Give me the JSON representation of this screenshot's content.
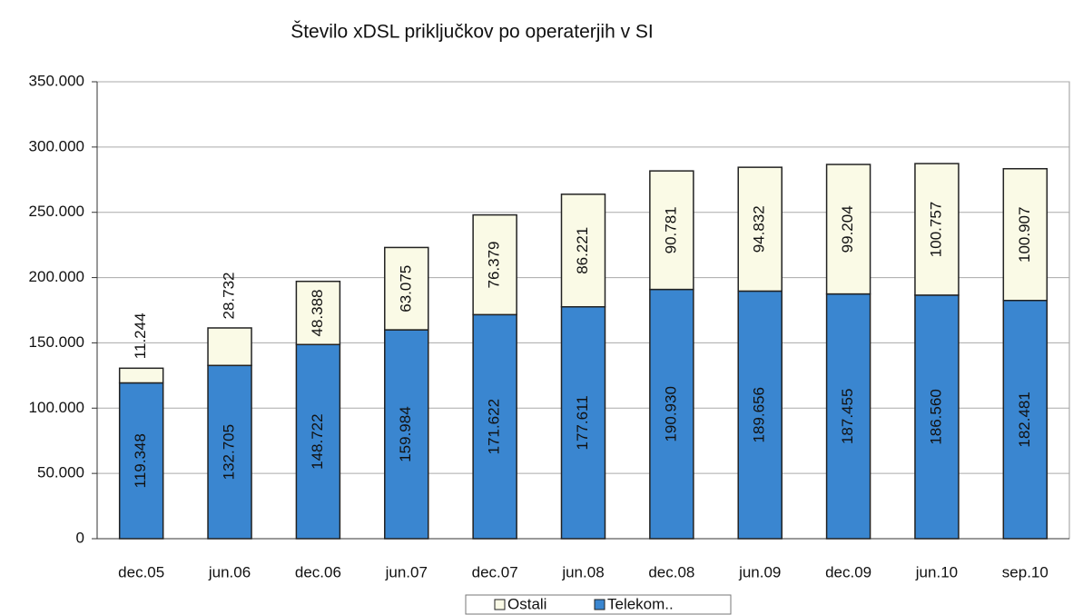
{
  "chart_data": {
    "type": "stacked_bar",
    "title": "Število xDSL priključkov po operaterjih v SI",
    "categories": [
      "dec.05",
      "jun.06",
      "dec.06",
      "jun.07",
      "dec.07",
      "jun.08",
      "dec.08",
      "jun.09",
      "dec.09",
      "jun.10",
      "sep.10"
    ],
    "series": [
      {
        "name": "Telekom..",
        "color": "#3a86d0",
        "values": [
          119348,
          132705,
          148722,
          159984,
          171622,
          177611,
          190930,
          189656,
          187455,
          186560,
          182481
        ],
        "value_labels": [
          "119.348",
          "132.705",
          "148.722",
          "159.984",
          "171.622",
          "177.611",
          "190.930",
          "189.656",
          "187.455",
          "186.560",
          "182.481"
        ]
      },
      {
        "name": "Ostali",
        "color": "#fafae6",
        "values": [
          11244,
          28732,
          48388,
          63075,
          76379,
          86221,
          90781,
          94832,
          99204,
          100757,
          100907
        ],
        "value_labels": [
          "11.244",
          "28.732",
          "48.388",
          "63.075",
          "76.379",
          "86.221",
          "90.781",
          "94.832",
          "99.204",
          "100.757",
          "100.907"
        ]
      }
    ],
    "ylim": [
      0,
      350000
    ],
    "yticks": [
      0,
      {
        "value": 50000,
        "label": "50.000"
      },
      {
        "value": 100000,
        "label": "100.000"
      },
      {
        "value": 150000,
        "label": "150.000"
      },
      {
        "value": 200000,
        "label": "200.000"
      },
      {
        "value": 250000,
        "label": "250.000"
      },
      {
        "value": 300000,
        "label": "300.000"
      },
      {
        "value": 350000,
        "label": "350.000"
      }
    ],
    "grid": true,
    "legend": "bottom"
  }
}
